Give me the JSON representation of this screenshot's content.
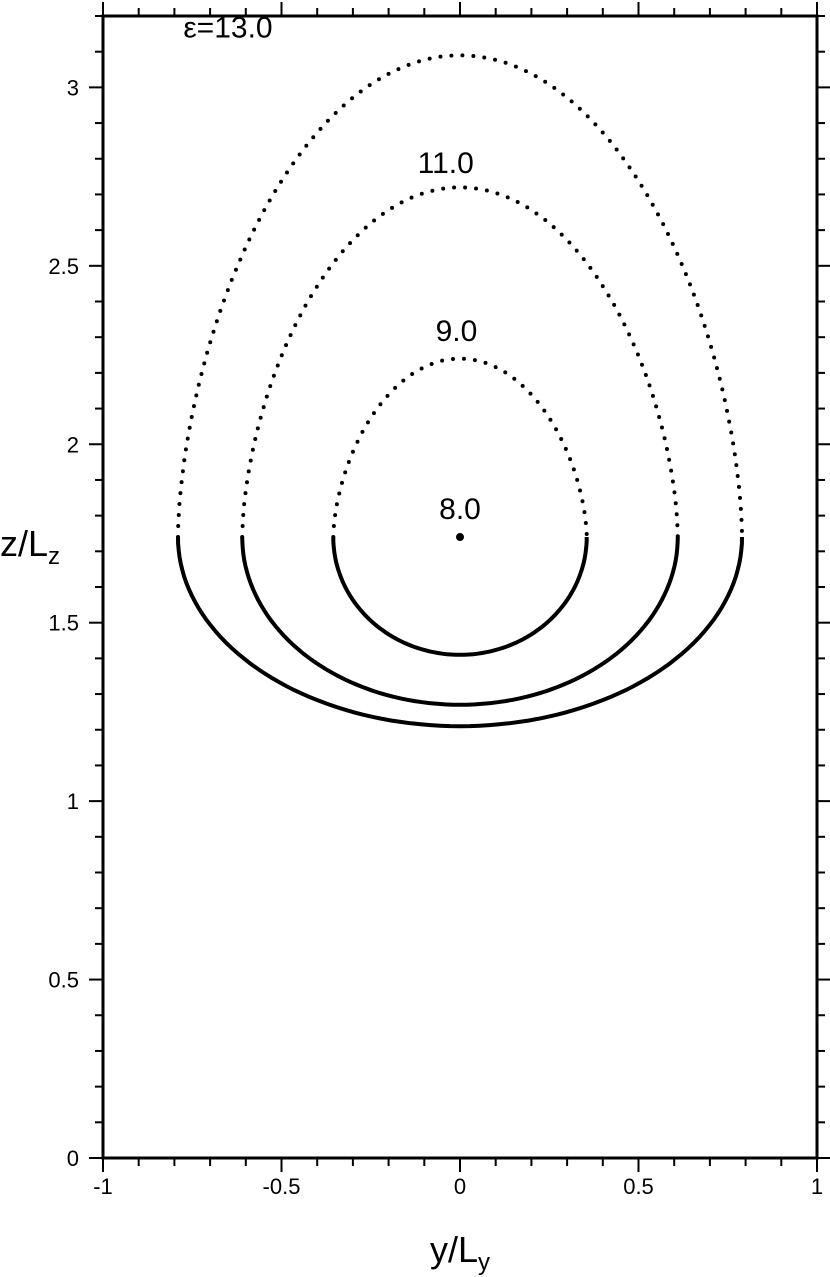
{
  "chart_data": {
    "type": "contour",
    "xlabel_main": "y/L",
    "xlabel_sub": "y",
    "ylabel_main": "z/L",
    "ylabel_sub": "z",
    "xlim": [
      -1,
      1
    ],
    "ylim": [
      0,
      3.2
    ],
    "x_ticks": [
      -1,
      -0.5,
      0,
      0.5,
      1
    ],
    "x_tick_labels": [
      "-1",
      "-0.5",
      "0",
      "0.5",
      "1"
    ],
    "y_ticks": [
      0,
      0.5,
      1,
      1.5,
      2,
      2.5,
      3
    ],
    "y_tick_labels": [
      "0",
      "0.5",
      "1",
      "1.5",
      "2",
      "2.5",
      "3"
    ],
    "x_minor_step": 0.1,
    "y_minor_step": 0.1,
    "grid": false,
    "center": [
      0,
      1.74
    ],
    "split_z": 1.74,
    "contours": [
      {
        "label": "ε=13.0",
        "half_width": 0.79,
        "bottom_z": 1.21,
        "top_z": 3.09
      },
      {
        "label": "11.0",
        "half_width": 0.61,
        "bottom_z": 1.27,
        "top_z": 2.72
      },
      {
        "label": "9.0",
        "half_width": 0.355,
        "bottom_z": 1.41,
        "top_z": 2.24
      }
    ],
    "center_point": {
      "label": "8.0",
      "y": 0,
      "z": 1.74
    },
    "line_style": {
      "lower": "solid",
      "upper": "dotted"
    },
    "colors": {
      "line": "#000000",
      "background": "#ffffff"
    }
  }
}
